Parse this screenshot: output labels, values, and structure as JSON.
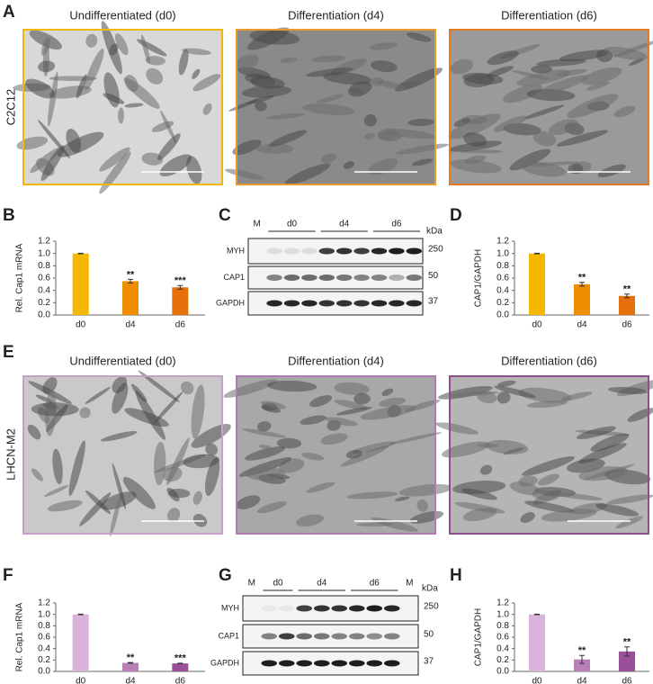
{
  "figure": {
    "panel_labels": [
      "A",
      "B",
      "C",
      "D",
      "E",
      "F",
      "G",
      "H"
    ],
    "row_labels": [
      "C2C12",
      "LHCN-M2"
    ],
    "image_titles": [
      [
        "Undifferentiated (d0)",
        "Differentiation (d4)",
        "Differentiation (d6)"
      ],
      [
        "Undifferentiated (d0)",
        "Differentiation (d4)",
        "Differentiation (d6)"
      ]
    ],
    "blots": [
      {
        "lanes_header": [
          "M",
          "d0",
          "d4",
          "d6"
        ],
        "unit": "kDa",
        "proteins": [
          "MYH",
          "CAP1",
          "GAPDH"
        ],
        "markers": [
          250,
          50,
          37
        ]
      },
      {
        "lanes_header": [
          "M",
          "d0",
          "d4",
          "d6",
          "M"
        ],
        "unit": "kDa",
        "proteins": [
          "MYH",
          "CAP1",
          "GAPDH"
        ],
        "markers": [
          250,
          50,
          37
        ]
      }
    ]
  },
  "chart_data": [
    {
      "type": "bar",
      "ylabel": "Rel. Cap1 mRNA",
      "categories": [
        "d0",
        "d4",
        "d6"
      ],
      "values": [
        1.0,
        0.55,
        0.45
      ],
      "errors": [
        0.005,
        0.03,
        0.03
      ],
      "significance": [
        null,
        "**",
        "***"
      ],
      "colors": [
        "#f5b800",
        "#f08c00",
        "#e8700a"
      ],
      "ylim": [
        0,
        1.2
      ],
      "yticks": [
        {
          "value": 0,
          "label": "0.0"
        },
        {
          "value": 0.2,
          "label": "0.2"
        },
        {
          "value": 0.4,
          "label": "0.4"
        },
        {
          "value": 0.6,
          "label": "0.6"
        },
        {
          "value": 0.8,
          "label": "0.8"
        },
        {
          "value": 1,
          "label": "1.0"
        },
        {
          "value": 1.2,
          "label": "1.2"
        }
      ]
    },
    {
      "type": "bar",
      "ylabel": "CAP1/GAPDH",
      "categories": [
        "d0",
        "d4",
        "d6"
      ],
      "values": [
        1.0,
        0.5,
        0.31
      ],
      "errors": [
        0.005,
        0.03,
        0.03
      ],
      "significance": [
        null,
        "**",
        "**"
      ],
      "colors": [
        "#f5b800",
        "#f08c00",
        "#e8700a"
      ],
      "ylim": [
        0,
        1.2
      ],
      "yticks": [
        {
          "value": 0,
          "label": "0.0"
        },
        {
          "value": 0.2,
          "label": "0.2"
        },
        {
          "value": 0.4,
          "label": "0.4"
        },
        {
          "value": 0.6,
          "label": "0.6"
        },
        {
          "value": 0.8,
          "label": "0.8"
        },
        {
          "value": 1,
          "label": "1.0"
        },
        {
          "value": 1.2,
          "label": "1.2"
        }
      ]
    },
    {
      "type": "bar",
      "ylabel": "Rel. Cap1 mRNA",
      "categories": [
        "d0",
        "d4",
        "d6"
      ],
      "values": [
        1.0,
        0.15,
        0.14
      ],
      "errors": [
        0.005,
        0.005,
        0.005
      ],
      "significance": [
        null,
        "**",
        "***"
      ],
      "colors": [
        "#d9b3d9",
        "#b980b8",
        "#9a4f99"
      ],
      "ylim": [
        0,
        1.2
      ],
      "yticks": [
        {
          "value": 0,
          "label": "0.0"
        },
        {
          "value": 0.2,
          "label": "0.2"
        },
        {
          "value": 0.4,
          "label": "0.4"
        },
        {
          "value": 0.6,
          "label": "0.6"
        },
        {
          "value": 0.8,
          "label": "0.8"
        },
        {
          "value": 1,
          "label": "1.0"
        },
        {
          "value": 1.2,
          "label": "1.2"
        }
      ]
    },
    {
      "type": "bar",
      "ylabel": "CAP1/GAPDH",
      "categories": [
        "d0",
        "d4",
        "d6"
      ],
      "values": [
        1.0,
        0.21,
        0.35
      ],
      "errors": [
        0.005,
        0.07,
        0.08
      ],
      "significance": [
        null,
        "**",
        "**"
      ],
      "colors": [
        "#d9b3d9",
        "#b980b8",
        "#9a4f99"
      ],
      "ylim": [
        0,
        1.2
      ],
      "yticks": [
        {
          "value": 0,
          "label": "0.0"
        },
        {
          "value": 0.2,
          "label": "0.2"
        },
        {
          "value": 0.4,
          "label": "0.4"
        },
        {
          "value": 0.6,
          "label": "0.6"
        },
        {
          "value": 0.8,
          "label": "0.8"
        },
        {
          "value": 1,
          "label": "1.0"
        },
        {
          "value": 1.2,
          "label": "1.2"
        }
      ]
    }
  ]
}
